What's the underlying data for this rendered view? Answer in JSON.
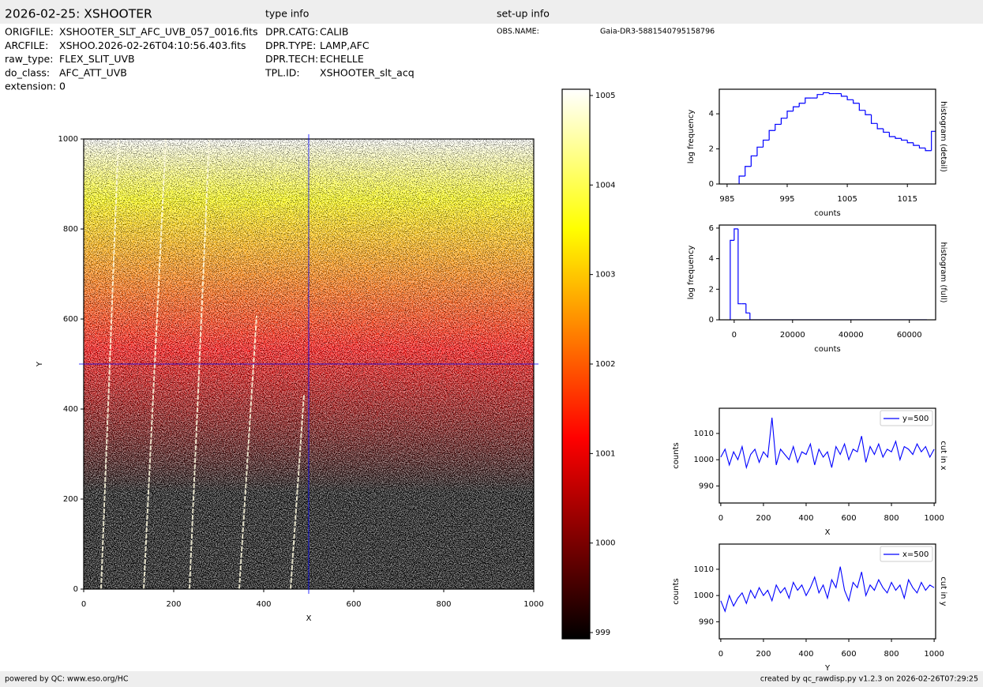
{
  "header": {
    "title": "2026-02-25: XSHOOTER",
    "type_info": "type info",
    "setup_info": "set-up info",
    "file_info": [
      [
        "ORIGFILE:",
        "XSHOOTER_SLT_AFC_UVB_057_0016.fits"
      ],
      [
        "ARCFILE:",
        "XSHOO.2026-02-26T04:10:56.403.fits"
      ],
      [
        "raw_type:",
        "FLEX_SLIT_UVB"
      ],
      [
        "do_class:",
        "AFC_ATT_UVB"
      ],
      [
        "extension:",
        "0"
      ]
    ],
    "type_fields": [
      [
        "DPR.CATG:",
        "CALIB"
      ],
      [
        "DPR.TYPE:",
        "LAMP,AFC"
      ],
      [
        "DPR.TECH:",
        "ECHELLE"
      ],
      [
        "TPL.ID:",
        "XSHOOTER_slt_acq"
      ]
    ],
    "setup_fields": [
      [
        "OBS.NAME:",
        "Gaia-DR3-5881540795158796"
      ]
    ]
  },
  "footer": {
    "left": "powered by QC: www.eso.org/HC",
    "right": "created by qc_rawdisp.py v1.2.3 on 2026-02-26T07:29:25"
  },
  "chart_data": [
    {
      "type": "heatmap",
      "xlim": [
        0,
        1000
      ],
      "ylim": [
        0,
        1000
      ],
      "xticks": [
        0,
        200,
        400,
        600,
        800,
        1000
      ],
      "yticks": [
        0,
        200,
        400,
        600,
        800,
        1000
      ],
      "x_label": "X",
      "y_label": "Y",
      "cut_x": 500,
      "cut_y": 500,
      "cut_color": "#0000ff",
      "colormap": "hot"
    },
    {
      "type": "colorbar",
      "clim": [
        998.93,
        1005.07
      ],
      "ticks": [
        999,
        1000,
        1001,
        1002,
        1003,
        1004,
        1005
      ],
      "colormap": "hot"
    },
    {
      "type": "histogram",
      "bins": [
        987,
        988,
        989,
        990,
        991,
        992,
        993,
        994,
        995,
        996,
        997,
        998,
        999,
        1000,
        1001,
        1002,
        1003,
        1004,
        1005,
        1006,
        1007,
        1008,
        1009,
        1010,
        1011,
        1012,
        1013,
        1014,
        1015,
        1016,
        1017,
        1018,
        1019,
        1020
      ],
      "counts": [
        0.45,
        1.0,
        1.6,
        2.1,
        2.5,
        3.05,
        3.4,
        3.75,
        4.15,
        4.4,
        4.6,
        4.9,
        4.9,
        5.1,
        5.2,
        5.15,
        5.15,
        5.0,
        4.8,
        4.6,
        4.2,
        3.95,
        3.45,
        3.15,
        2.95,
        2.7,
        2.6,
        2.5,
        2.35,
        2.2,
        2.05,
        1.9,
        3.0
      ],
      "xlim": [
        983.7,
        1019.7
      ],
      "ylim": [
        0,
        5.4
      ],
      "xticks": [
        985,
        995,
        1005,
        1015
      ],
      "yticks": [
        0,
        2,
        4
      ],
      "x_label": "counts",
      "y_label": "log frequency",
      "side_title": "histogram (detail)",
      "color": "#0000ff"
    },
    {
      "type": "histogram",
      "bins": [
        -1350,
        0,
        1350,
        2700,
        4050,
        5400,
        66000
      ],
      "counts": [
        5.2,
        5.95,
        1.05,
        1.05,
        0.45,
        0
      ],
      "xlim": [
        -5100,
        69000
      ],
      "ylim": [
        0,
        6.2
      ],
      "xticks": [
        0,
        20000,
        40000,
        60000
      ],
      "yticks": [
        0,
        2,
        4,
        6
      ],
      "x_label": "counts",
      "y_label": "log frequency",
      "side_title": "histogram (full)",
      "color": "#0000ff"
    },
    {
      "type": "line",
      "x": [
        0,
        20,
        40,
        60,
        80,
        100,
        120,
        140,
        160,
        180,
        200,
        220,
        240,
        260,
        280,
        300,
        320,
        340,
        360,
        380,
        400,
        420,
        440,
        460,
        480,
        500,
        520,
        540,
        560,
        580,
        600,
        620,
        640,
        660,
        680,
        700,
        720,
        740,
        760,
        780,
        800,
        820,
        840,
        860,
        880,
        900,
        920,
        940,
        960,
        980,
        1000
      ],
      "series": [
        {
          "name": "y=500",
          "color": "#0000ff",
          "values": [
            1001,
            1004,
            998,
            1003,
            1000,
            1005,
            997,
            1002,
            1004,
            999,
            1003,
            1001,
            1016,
            998,
            1004,
            1002,
            1000,
            1005,
            999,
            1003,
            1002,
            1006,
            998,
            1004,
            1001,
            1003,
            997,
            1005,
            1002,
            1006,
            1000,
            1004,
            1003,
            1009,
            999,
            1005,
            1002,
            1006,
            1001,
            1004,
            1003,
            1007,
            1000,
            1005,
            1004,
            1002,
            1006,
            1003,
            1005,
            1001,
            1004
          ]
        }
      ],
      "xlim": [
        -7,
        1007
      ],
      "ylim": [
        983.5,
        1019.6
      ],
      "xticks": [
        0,
        200,
        400,
        600,
        800,
        1000
      ],
      "yticks": [
        990,
        1000,
        1010
      ],
      "x_label": "X",
      "y_label": "counts",
      "side_title": "cut in x",
      "legend": "upper right"
    },
    {
      "type": "line",
      "x": [
        0,
        20,
        40,
        60,
        80,
        100,
        120,
        140,
        160,
        180,
        200,
        220,
        240,
        260,
        280,
        300,
        320,
        340,
        360,
        380,
        400,
        420,
        440,
        460,
        480,
        500,
        520,
        540,
        560,
        580,
        600,
        620,
        640,
        660,
        680,
        700,
        720,
        740,
        760,
        780,
        800,
        820,
        840,
        860,
        880,
        900,
        920,
        940,
        960,
        980,
        1000
      ],
      "series": [
        {
          "name": "x=500",
          "color": "#0000ff",
          "values": [
            998,
            994,
            1000,
            996,
            999,
            1001,
            997,
            1002,
            999,
            1003,
            1000,
            1002,
            998,
            1004,
            1001,
            1003,
            999,
            1005,
            1002,
            1004,
            1000,
            1003,
            1007,
            1001,
            1004,
            999,
            1006,
            1003,
            1011,
            1002,
            998,
            1005,
            1003,
            1009,
            1000,
            1004,
            1002,
            1006,
            1003,
            1001,
            1005,
            1002,
            1004,
            999,
            1006,
            1003,
            1001,
            1005,
            1002,
            1004,
            1003
          ]
        }
      ],
      "xlim": [
        -7,
        1007
      ],
      "ylim": [
        983.5,
        1019.6
      ],
      "xticks": [
        0,
        200,
        400,
        600,
        800,
        1000
      ],
      "yticks": [
        990,
        1000,
        1010
      ],
      "x_label": "Y",
      "y_label": "counts",
      "side_title": "cut in y",
      "legend": "upper right"
    }
  ]
}
